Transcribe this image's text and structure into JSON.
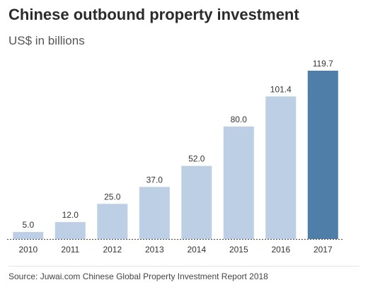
{
  "chart_data": {
    "type": "bar",
    "title": "Chinese outbound property investment",
    "subtitle": "US$ in billions",
    "categories": [
      "2010",
      "2011",
      "2012",
      "2013",
      "2014",
      "2015",
      "2016",
      "2017"
    ],
    "values": [
      5.0,
      12.0,
      25.0,
      37.0,
      52.0,
      80.0,
      101.4,
      119.7
    ],
    "value_labels": [
      "5.0",
      "12.0",
      "25.0",
      "37.0",
      "52.0",
      "80.0",
      "101.4",
      "119.7"
    ],
    "xlabel": "",
    "ylabel": "",
    "ylim": [
      0,
      119.7
    ],
    "grid": false,
    "legend": "none",
    "colors": {
      "bar": "#bccfe4",
      "bar_highlight": "#4f7ea9",
      "baseline": "#444444"
    },
    "highlight_category": "2017",
    "source": "Source: Juwai.com Chinese Global Property Investment Report 2018"
  }
}
